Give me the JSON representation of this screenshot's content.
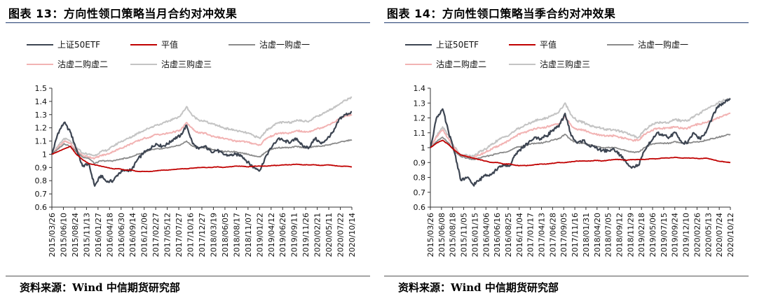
{
  "charts": [
    {
      "title": "图表 13：方向性领口策略当月合约对冲效果",
      "source": "资料来源：Wind  中信期货研究部",
      "chart_data": {
        "type": "line",
        "ylim": [
          0.6,
          1.5
        ],
        "yticks": [
          "0.6",
          "0.7",
          "0.8",
          "0.9",
          "1",
          "1.1",
          "1.2",
          "1.3",
          "1.4",
          "1.5"
        ],
        "xticks": [
          "2015/03/26",
          "2015/06/10",
          "2015/08/24",
          "2015/11/13",
          "2016/01/27",
          "2016/04/18",
          "2016/06/30",
          "2016/09/14",
          "2016/12/06",
          "2017/02/27",
          "2017/05/12",
          "2017/07/27",
          "2017/10/16",
          "2017/12/27",
          "2018/03/19",
          "2018/06/05",
          "2018/08/17",
          "2018/11/07",
          "2019/01/22",
          "2019/04/12",
          "2019/06/26",
          "2019/09/11",
          "2019/11/26",
          "2020/02/21",
          "2020/05/11",
          "2020/07/22",
          "2020/10/14"
        ],
        "legend": "top",
        "grid": false,
        "series": [
          {
            "name": "上证50ETF",
            "color": "#3d4552",
            "width": 2.2,
            "values": [
              1.0,
              1.16,
              1.24,
              1.17,
              1.04,
              0.91,
              0.93,
              0.76,
              0.84,
              0.79,
              0.8,
              0.86,
              0.88,
              0.88,
              0.96,
              1.01,
              1.04,
              1.08,
              1.06,
              1.08,
              1.12,
              1.14,
              1.22,
              1.08,
              1.04,
              1.06,
              1.02,
              1.03,
              1.0,
              0.99,
              1.0,
              0.99,
              0.94,
              0.9,
              0.88,
              0.99,
              1.06,
              1.12,
              1.1,
              1.09,
              1.12,
              1.06,
              1.05,
              1.12,
              1.08,
              1.12,
              1.17,
              1.27,
              1.3,
              1.32
            ]
          },
          {
            "name": "平值",
            "color": "#c00000",
            "width": 1.8,
            "values": [
              1.0,
              1.02,
              1.04,
              1.06,
              1.0,
              0.96,
              0.93,
              0.92,
              0.91,
              0.9,
              0.89,
              0.89,
              0.88,
              0.88,
              0.87,
              0.87,
              0.87,
              0.875,
              0.88,
              0.88,
              0.885,
              0.89,
              0.89,
              0.895,
              0.9,
              0.9,
              0.9,
              0.905,
              0.9,
              0.905,
              0.91,
              0.91,
              0.905,
              0.91,
              0.91,
              0.91,
              0.915,
              0.915,
              0.92,
              0.92,
              0.925,
              0.92,
              0.92,
              0.92,
              0.915,
              0.92,
              0.915,
              0.91,
              0.91,
              0.905
            ]
          },
          {
            "name": "沽虚一购虚一",
            "color": "#8a8a8a",
            "width": 1.8,
            "values": [
              1.0,
              1.04,
              1.08,
              1.06,
              1.02,
              0.98,
              0.97,
              0.93,
              0.95,
              0.95,
              0.95,
              0.96,
              0.97,
              0.98,
              1.0,
              1.01,
              1.03,
              1.04,
              1.04,
              1.05,
              1.06,
              1.07,
              1.1,
              1.06,
              1.05,
              1.05,
              1.04,
              1.03,
              1.02,
              1.02,
              1.02,
              1.01,
              1.0,
              0.99,
              0.98,
              1.02,
              1.04,
              1.05,
              1.05,
              1.05,
              1.06,
              1.05,
              1.05,
              1.06,
              1.06,
              1.07,
              1.08,
              1.09,
              1.1,
              1.11
            ]
          },
          {
            "name": "沽虚二购虚二",
            "color": "#f2b3b3",
            "width": 2.0,
            "values": [
              1.0,
              1.05,
              1.1,
              1.08,
              1.03,
              0.99,
              0.98,
              0.97,
              0.99,
              1.0,
              1.02,
              1.04,
              1.06,
              1.08,
              1.1,
              1.12,
              1.13,
              1.15,
              1.15,
              1.16,
              1.17,
              1.18,
              1.24,
              1.19,
              1.16,
              1.16,
              1.14,
              1.13,
              1.12,
              1.11,
              1.1,
              1.1,
              1.09,
              1.08,
              1.07,
              1.12,
              1.14,
              1.16,
              1.16,
              1.16,
              1.18,
              1.17,
              1.17,
              1.19,
              1.2,
              1.22,
              1.24,
              1.27,
              1.29,
              1.3
            ]
          },
          {
            "name": "沽虚三购虚三",
            "color": "#c4c4c4",
            "width": 2.0,
            "values": [
              1.0,
              1.06,
              1.12,
              1.1,
              1.05,
              1.01,
              1.0,
              0.99,
              1.02,
              1.03,
              1.06,
              1.09,
              1.11,
              1.13,
              1.16,
              1.18,
              1.2,
              1.22,
              1.23,
              1.25,
              1.27,
              1.29,
              1.36,
              1.29,
              1.26,
              1.25,
              1.23,
              1.22,
              1.2,
              1.19,
              1.18,
              1.17,
              1.16,
              1.14,
              1.12,
              1.18,
              1.21,
              1.24,
              1.24,
              1.24,
              1.26,
              1.25,
              1.25,
              1.28,
              1.3,
              1.33,
              1.35,
              1.38,
              1.41,
              1.43
            ]
          }
        ]
      }
    },
    {
      "title": "图表 14：方向性领口策略当季合约对冲效果",
      "source": "资料来源：Wind  中信期货研究部",
      "chart_data": {
        "type": "line",
        "ylim": [
          0.6,
          1.4
        ],
        "yticks": [
          "0.6",
          "0.7",
          "0.8",
          "0.9",
          "1",
          "1.1",
          "1.2",
          "1.3",
          "1.4"
        ],
        "xticks": [
          "2015/03/26",
          "2015/06/08",
          "2015/08/18",
          "2015/11/05",
          "2016/01/15",
          "2016/04/06",
          "2016/06/16",
          "2016/08/25",
          "2016/11/04",
          "2017/01/17",
          "2017/04/13",
          "2017/06/28",
          "2017/09/05",
          "2017/11/16",
          "2018/01/31",
          "2018/04/20",
          "2018/07/05",
          "2018/09/12",
          "2018/11/29",
          "2019/02/18",
          "2019/05/06",
          "2019/07/15",
          "2019/09/24",
          "2019/12/10",
          "2020/02/26",
          "2020/05/13",
          "2020/07/24",
          "2020/10/12"
        ],
        "legend": "top",
        "grid": false,
        "series": [
          {
            "name": "上证50ETF",
            "color": "#3d4552",
            "width": 2.2,
            "values": [
              1.0,
              1.2,
              1.26,
              1.1,
              0.96,
              0.78,
              0.8,
              0.75,
              0.78,
              0.82,
              0.82,
              0.86,
              0.88,
              0.88,
              0.96,
              1.0,
              1.03,
              1.07,
              1.06,
              1.08,
              1.12,
              1.14,
              1.23,
              1.08,
              1.03,
              1.05,
              1.01,
              1.0,
              0.98,
              0.98,
              0.99,
              0.95,
              0.9,
              0.87,
              0.88,
              0.98,
              1.04,
              1.1,
              1.08,
              1.07,
              1.1,
              1.04,
              1.03,
              1.1,
              1.06,
              1.1,
              1.2,
              1.28,
              1.3,
              1.33
            ]
          },
          {
            "name": "平值",
            "color": "#c00000",
            "width": 1.8,
            "values": [
              1.0,
              1.03,
              1.05,
              1.02,
              0.98,
              0.95,
              0.94,
              0.93,
              0.92,
              0.91,
              0.9,
              0.9,
              0.89,
              0.89,
              0.88,
              0.88,
              0.88,
              0.885,
              0.89,
              0.89,
              0.895,
              0.9,
              0.9,
              0.905,
              0.91,
              0.91,
              0.91,
              0.915,
              0.91,
              0.915,
              0.92,
              0.92,
              0.915,
              0.92,
              0.92,
              0.92,
              0.925,
              0.925,
              0.93,
              0.93,
              0.935,
              0.93,
              0.93,
              0.93,
              0.925,
              0.93,
              0.92,
              0.91,
              0.905,
              0.9
            ]
          },
          {
            "name": "沽虚一购虚一",
            "color": "#8a8a8a",
            "width": 1.8,
            "values": [
              1.0,
              1.04,
              1.07,
              1.03,
              0.97,
              0.94,
              0.93,
              0.92,
              0.93,
              0.94,
              0.95,
              0.96,
              0.97,
              0.98,
              1.0,
              1.01,
              1.02,
              1.03,
              1.03,
              1.04,
              1.05,
              1.06,
              1.09,
              1.05,
              1.03,
              1.03,
              1.02,
              1.01,
              1.0,
              1.0,
              1.0,
              0.99,
              0.98,
              0.97,
              0.97,
              1.0,
              1.02,
              1.03,
              1.03,
              1.03,
              1.04,
              1.03,
              1.03,
              1.04,
              1.04,
              1.05,
              1.06,
              1.07,
              1.08,
              1.09
            ]
          },
          {
            "name": "沽虚二购虚二",
            "color": "#f2b3b3",
            "width": 2.0,
            "values": [
              1.0,
              1.07,
              1.12,
              1.06,
              0.99,
              0.94,
              0.94,
              0.93,
              0.95,
              0.97,
              0.99,
              1.01,
              1.03,
              1.05,
              1.08,
              1.1,
              1.11,
              1.13,
              1.13,
              1.14,
              1.15,
              1.16,
              1.21,
              1.15,
              1.12,
              1.12,
              1.1,
              1.09,
              1.08,
              1.08,
              1.08,
              1.07,
              1.06,
              1.05,
              1.05,
              1.09,
              1.11,
              1.13,
              1.13,
              1.13,
              1.14,
              1.13,
              1.13,
              1.15,
              1.16,
              1.17,
              1.18,
              1.2,
              1.22,
              1.23
            ]
          },
          {
            "name": "沽虚三购虚三",
            "color": "#c4c4c4",
            "width": 2.0,
            "values": [
              1.0,
              1.08,
              1.14,
              1.08,
              1.0,
              0.95,
              0.95,
              0.94,
              0.97,
              0.99,
              1.02,
              1.05,
              1.07,
              1.09,
              1.12,
              1.14,
              1.16,
              1.18,
              1.19,
              1.2,
              1.22,
              1.24,
              1.3,
              1.22,
              1.18,
              1.17,
              1.15,
              1.14,
              1.13,
              1.12,
              1.12,
              1.11,
              1.1,
              1.08,
              1.07,
              1.12,
              1.15,
              1.17,
              1.17,
              1.17,
              1.19,
              1.18,
              1.18,
              1.21,
              1.23,
              1.26,
              1.28,
              1.3,
              1.32,
              1.33
            ]
          }
        ]
      }
    }
  ]
}
